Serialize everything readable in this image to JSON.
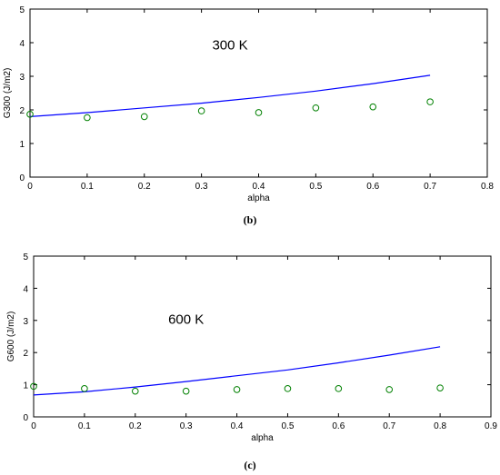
{
  "chart_data": [
    {
      "type": "line",
      "annotation": "300 K",
      "caption": "(b)",
      "xlabel": "alpha",
      "ylabel": "G300 (J/m2)",
      "xlim": [
        0,
        0.8
      ],
      "ylim": [
        0,
        5
      ],
      "xticks": [
        "0",
        "0.1",
        "0.2",
        "0.3",
        "0.4",
        "0.5",
        "0.6",
        "0.7",
        "0.8"
      ],
      "yticks": [
        "0",
        "1",
        "2",
        "3",
        "4",
        "5"
      ],
      "grid": false,
      "series": [
        {
          "kind": "line",
          "color": "#0000ff",
          "x": [
            0,
            0.1,
            0.2,
            0.3,
            0.4,
            0.5,
            0.6,
            0.7
          ],
          "y": [
            1.8,
            1.92,
            2.06,
            2.2,
            2.37,
            2.56,
            2.78,
            3.03
          ]
        },
        {
          "kind": "scatter",
          "marker": "circle-open",
          "color": "#008000",
          "x": [
            0,
            0.1,
            0.2,
            0.3,
            0.4,
            0.5,
            0.6,
            0.7
          ],
          "y": [
            1.87,
            1.77,
            1.8,
            1.97,
            1.92,
            2.06,
            2.09,
            2.24
          ]
        }
      ]
    },
    {
      "type": "line",
      "annotation": "600 K",
      "caption": "(c)",
      "xlabel": "alpha",
      "ylabel": "G600 (J/m2)",
      "xlim": [
        0,
        0.9
      ],
      "ylim": [
        0,
        5
      ],
      "xticks": [
        "0",
        "0.1",
        "0.2",
        "0.3",
        "0.4",
        "0.5",
        "0.6",
        "0.7",
        "0.8",
        "0.9"
      ],
      "yticks": [
        "0",
        "1",
        "2",
        "3",
        "4",
        "5"
      ],
      "grid": false,
      "series": [
        {
          "kind": "line",
          "color": "#0000ff",
          "x": [
            0,
            0.1,
            0.2,
            0.3,
            0.4,
            0.5,
            0.6,
            0.7,
            0.8
          ],
          "y": [
            0.68,
            0.78,
            0.93,
            1.1,
            1.28,
            1.46,
            1.68,
            1.92,
            2.18
          ]
        },
        {
          "kind": "scatter",
          "marker": "circle-open",
          "color": "#008000",
          "x": [
            0,
            0.1,
            0.2,
            0.3,
            0.4,
            0.5,
            0.6,
            0.7,
            0.8
          ],
          "y": [
            0.95,
            0.88,
            0.8,
            0.8,
            0.85,
            0.88,
            0.88,
            0.85,
            0.9
          ]
        }
      ]
    }
  ]
}
